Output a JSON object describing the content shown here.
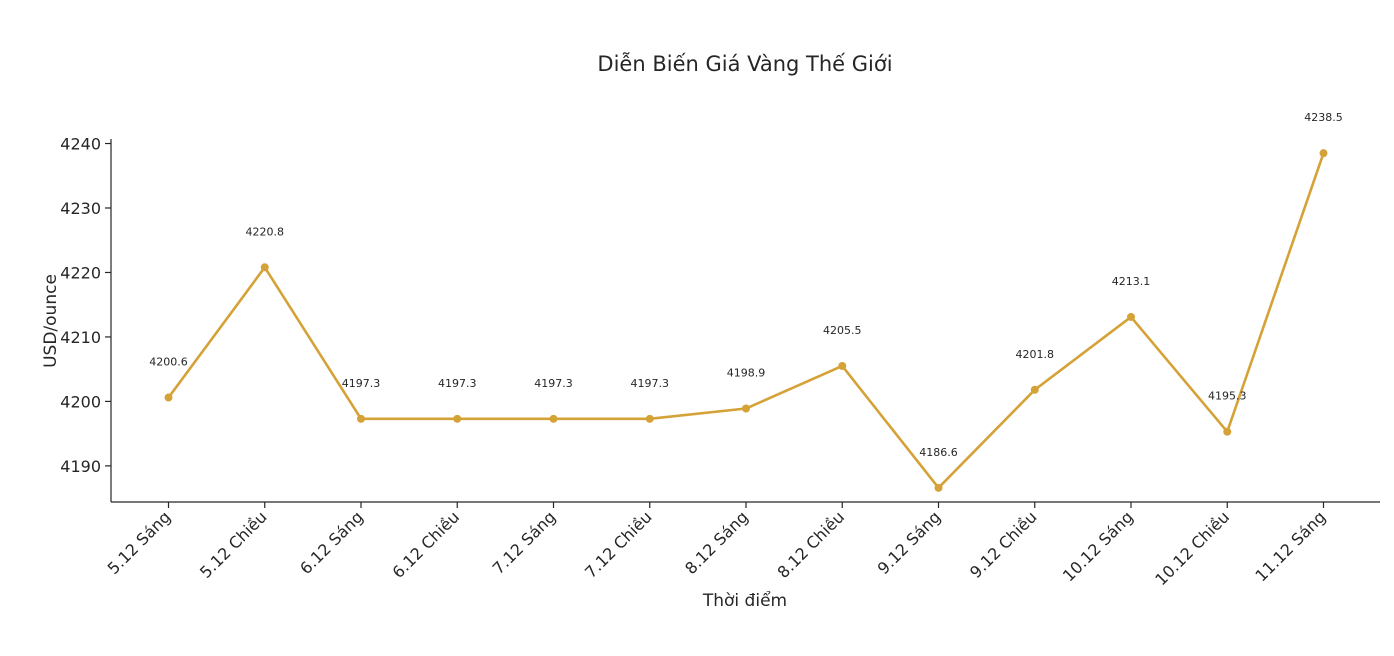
{
  "chart_data": {
    "type": "line",
    "title": "Diễn Biến Giá Vàng Thế Giới",
    "xlabel": "Thời điểm",
    "ylabel": "USD/ounce",
    "categories": [
      "5.12 Sáng",
      "5.12 Chiều",
      "6.12 Sáng",
      "6.12 Chiều",
      "7.12 Sáng",
      "7.12 Chiều",
      "8.12 Sáng",
      "8.12 Chiều",
      "9.12 Sáng",
      "9.12 Chiều",
      "10.12 Sáng",
      "10.12 Chiều",
      "11.12 Sáng"
    ],
    "series": [
      {
        "values": [
          4200.6,
          4220.8,
          4197.3,
          4197.3,
          4197.3,
          4197.3,
          4198.9,
          4205.5,
          4186.6,
          4201.8,
          4213.1,
          4195.3,
          4238.5
        ],
        "color": "#D4A237"
      }
    ],
    "data_labels": [
      "4200.6",
      "4220.8",
      "4197.3",
      "4197.3",
      "4197.3",
      "4197.3",
      "4198.9",
      "4205.5",
      "4186.6",
      "4201.8",
      "4213.1",
      "4195.3",
      "4238.5"
    ],
    "yticks": [
      4190,
      4200,
      4210,
      4220,
      4230,
      4240
    ],
    "ylim": [
      4184.4,
      4240.7
    ],
    "grid": false,
    "legend": "none"
  }
}
